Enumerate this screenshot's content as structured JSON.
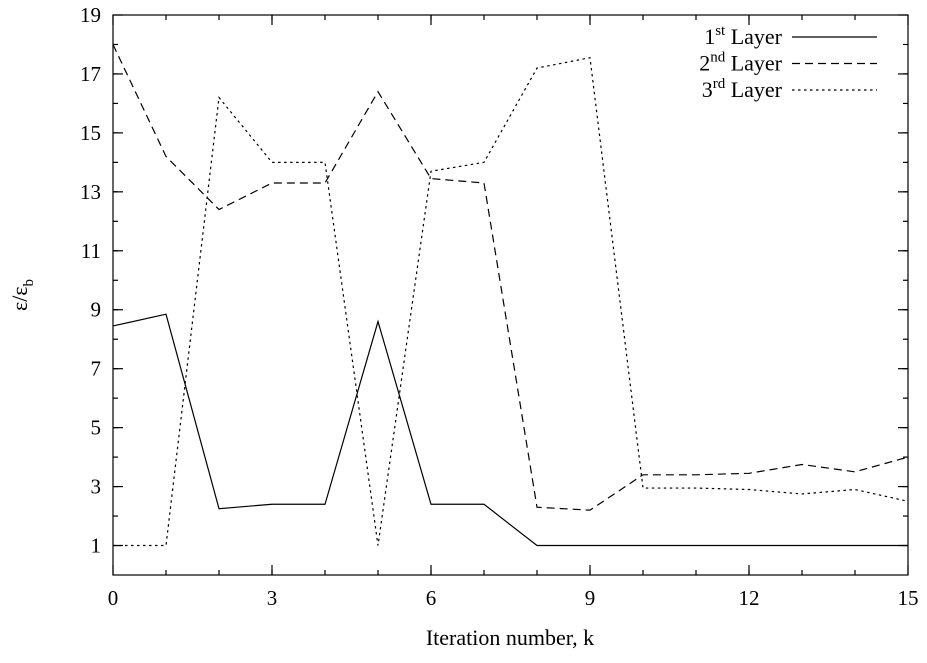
{
  "chart_data": {
    "type": "line",
    "xlabel": "Iteration number, k",
    "ylabel": {
      "base": "ε/ε",
      "subscript": "b"
    },
    "xlim": [
      0,
      15
    ],
    "ylim": [
      0,
      19
    ],
    "xticks": [
      0,
      3,
      6,
      9,
      12,
      15
    ],
    "yticks": [
      1,
      3,
      5,
      7,
      9,
      11,
      13,
      15,
      17,
      19
    ],
    "grid": false,
    "legend_position": "top-right",
    "x": [
      0,
      1,
      2,
      3,
      4,
      5,
      6,
      7,
      8,
      9,
      10,
      11,
      12,
      13,
      14,
      15
    ],
    "series": [
      {
        "name": "1st Layer",
        "label": {
          "num": "1",
          "sup": "st",
          "rest": " Layer"
        },
        "dash": "solid",
        "values": [
          8.45,
          8.85,
          2.25,
          2.4,
          2.4,
          8.6,
          2.4,
          2.4,
          1.0,
          1.0,
          1.0,
          1.0,
          1.0,
          1.0,
          1.0,
          1.0
        ]
      },
      {
        "name": "2nd Layer",
        "label": {
          "num": "2",
          "sup": "nd",
          "rest": " Layer"
        },
        "dash": "dashed",
        "values": [
          18.0,
          14.2,
          12.4,
          13.3,
          13.3,
          16.4,
          13.45,
          13.3,
          2.3,
          2.2,
          3.4,
          3.4,
          3.45,
          3.75,
          3.5,
          4.0
        ]
      },
      {
        "name": "3rd Layer",
        "label": {
          "num": "3",
          "sup": "rd",
          "rest": " Layer"
        },
        "dash": "dotted",
        "values": [
          1.0,
          1.0,
          16.2,
          14.0,
          14.0,
          1.0,
          13.7,
          14.0,
          17.2,
          17.55,
          2.95,
          2.95,
          2.9,
          2.75,
          2.9,
          2.5
        ]
      }
    ]
  }
}
